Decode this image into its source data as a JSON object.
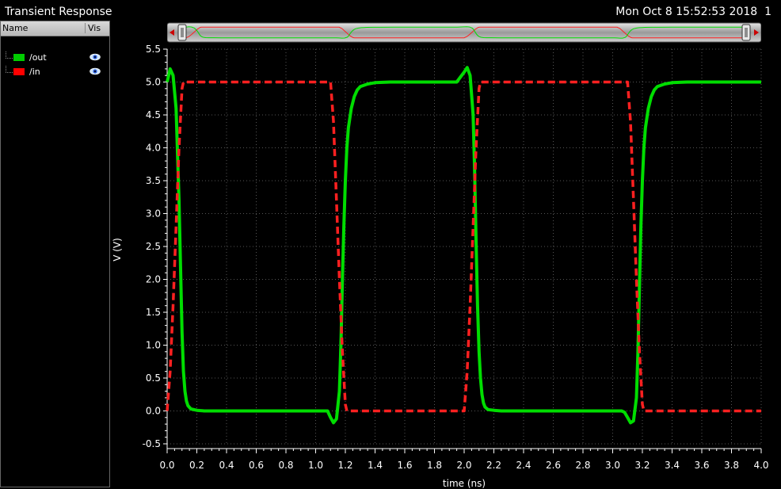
{
  "window": {
    "title": "Transient Response",
    "timestamp": "Mon Oct 8 15:52:53 2018",
    "subwindow": "1"
  },
  "legend": {
    "col_name": "Name",
    "col_vis": "Vis",
    "items": [
      {
        "name": "/out",
        "color": "#00cc00",
        "icon": "eye-icon"
      },
      {
        "name": "/in",
        "color": "#ff0000",
        "icon": "eye-icon"
      }
    ]
  },
  "chart_data": {
    "type": "line",
    "xlabel": "time (ns)",
    "ylabel": "V (V)",
    "xlim": [
      0.0,
      4.0
    ],
    "ylim": [
      -0.5,
      5.5
    ],
    "xticks": [
      "0.0",
      "0.2",
      "0.4",
      "0.6",
      "0.8",
      "1.0",
      "1.2",
      "1.4",
      "1.6",
      "1.8",
      "2.0",
      "2.2",
      "2.4",
      "2.6",
      "2.8",
      "3.0",
      "3.2",
      "3.4",
      "3.6",
      "3.8",
      "4.0"
    ],
    "yticks": [
      "-0.5",
      "0.0",
      "0.5",
      "1.0",
      "1.5",
      "2.0",
      "2.5",
      "3.0",
      "3.5",
      "4.0",
      "4.5",
      "5.0",
      "5.5"
    ],
    "grid": true,
    "series": [
      {
        "name": "/out",
        "color": "#00dd00",
        "style": "solid",
        "x": [
          0.0,
          0.02,
          0.04,
          0.06,
          0.08,
          0.09,
          0.1,
          0.11,
          0.12,
          0.13,
          0.14,
          0.16,
          0.2,
          0.25,
          0.3,
          0.5,
          0.8,
          1.0,
          1.06,
          1.08,
          1.1,
          1.12,
          1.14,
          1.16,
          1.17,
          1.18,
          1.19,
          1.2,
          1.21,
          1.22,
          1.24,
          1.26,
          1.28,
          1.3,
          1.35,
          1.4,
          1.5,
          1.6,
          1.8,
          1.95,
          2.0,
          2.02,
          2.04,
          2.06,
          2.07,
          2.08,
          2.09,
          2.1,
          2.11,
          2.12,
          2.13,
          2.14,
          2.16,
          2.2,
          2.25,
          2.3,
          2.5,
          2.8,
          3.0,
          3.06,
          3.08,
          3.1,
          3.12,
          3.14,
          3.16,
          3.17,
          3.18,
          3.19,
          3.2,
          3.21,
          3.22,
          3.24,
          3.26,
          3.28,
          3.3,
          3.35,
          3.4,
          3.5,
          3.6,
          3.8,
          4.0
        ],
        "y": [
          5.0,
          5.2,
          5.1,
          4.6,
          3.2,
          2.2,
          1.2,
          0.6,
          0.3,
          0.15,
          0.08,
          0.03,
          0.01,
          0.0,
          0.0,
          0.0,
          0.0,
          0.0,
          0.0,
          0.0,
          -0.1,
          -0.18,
          -0.12,
          0.3,
          1.0,
          2.0,
          2.8,
          3.5,
          4.0,
          4.3,
          4.6,
          4.78,
          4.88,
          4.93,
          4.97,
          4.99,
          5.0,
          5.0,
          5.0,
          5.0,
          5.15,
          5.22,
          5.1,
          4.5,
          3.7,
          2.6,
          1.6,
          0.9,
          0.5,
          0.25,
          0.12,
          0.06,
          0.02,
          0.01,
          0.0,
          0.0,
          0.0,
          0.0,
          0.0,
          0.0,
          -0.02,
          -0.1,
          -0.18,
          -0.15,
          0.2,
          0.9,
          1.9,
          2.8,
          3.5,
          4.0,
          4.3,
          4.6,
          4.78,
          4.88,
          4.93,
          4.97,
          4.99,
          5.0,
          5.0,
          5.0,
          5.0
        ]
      },
      {
        "name": "/in",
        "color": "#ff2020",
        "style": "dashed",
        "x": [
          0.0,
          0.02,
          0.04,
          0.06,
          0.08,
          0.1,
          0.11,
          1.1,
          1.12,
          1.14,
          1.16,
          1.18,
          1.2,
          1.21,
          2.0,
          2.02,
          2.04,
          2.06,
          2.08,
          2.1,
          2.11,
          3.1,
          3.12,
          3.14,
          3.16,
          3.18,
          3.2,
          3.21,
          4.0
        ],
        "y": [
          0.0,
          0.6,
          1.6,
          2.8,
          4.0,
          4.9,
          5.0,
          5.0,
          4.4,
          3.2,
          2.0,
          0.9,
          0.1,
          0.0,
          0.0,
          0.6,
          1.6,
          2.8,
          4.0,
          4.9,
          5.0,
          5.0,
          4.4,
          3.2,
          2.0,
          0.9,
          0.1,
          0.0,
          0.0
        ]
      }
    ]
  }
}
